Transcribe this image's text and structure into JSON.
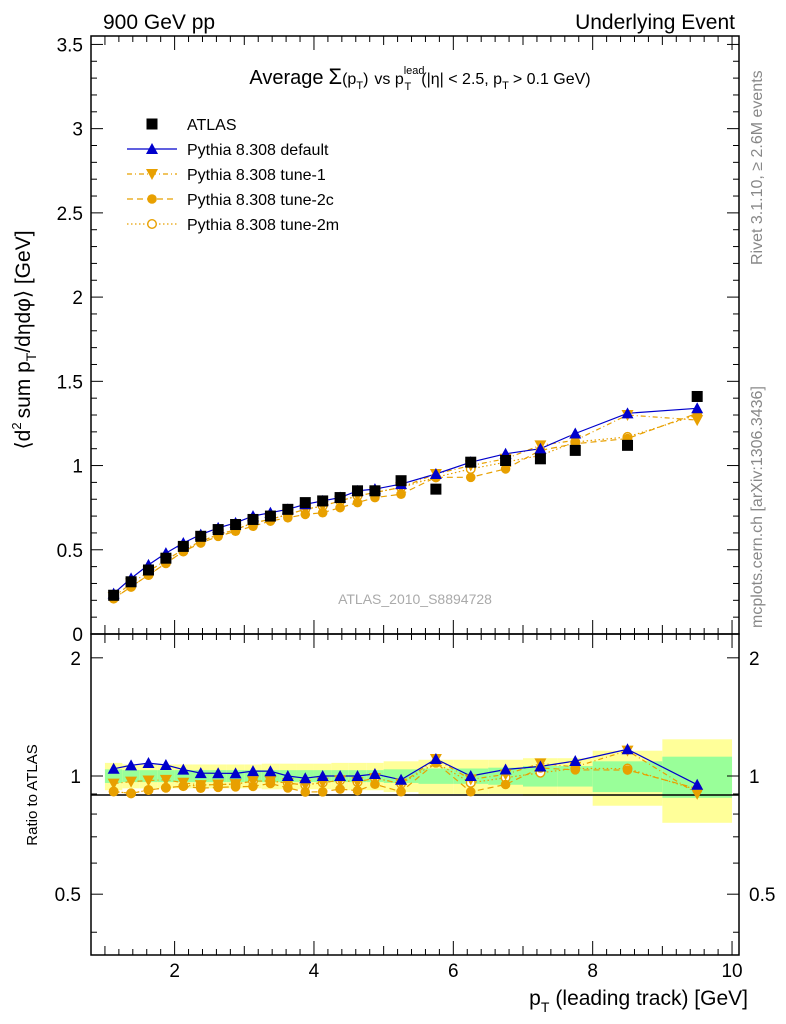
{
  "header": {
    "left": "900 GeV pp",
    "right": "Underlying Event"
  },
  "title": {
    "prefix": "Average",
    "sigma": "Σ",
    "pt_open": "(p",
    "pt_sub": "T",
    "pt_close": ")",
    "vs": "vs p",
    "lead_sup": "lead",
    "lead_sub": "T",
    "cuts": "(|η| < 2.5, p",
    "cuts_sub": "T",
    "cuts_tail": "> 0.1 GeV)"
  },
  "y_axis_label": {
    "part1": "⟨d",
    "sup2": "2",
    "part2": "sum p",
    "subT": "T",
    "part3": "/dηdφ⟩ [GeV]"
  },
  "x_axis_label": {
    "part1": "p",
    "subT": "T",
    "part2": "(leading track) [GeV]"
  },
  "ratio_label": "Ratio to ATLAS",
  "analysis_id": "ATLAS_2010_S8894728",
  "side_text_top": "Rivet 3.1.10, ≥ 2.6M events",
  "side_text_bottom": "mcplots.cern.ch [arXiv:1306.3436]",
  "colors": {
    "atlas": "#000000",
    "default": "#0000cc",
    "tune": "#e8a000",
    "band_inner": "#99ff99",
    "band_outer": "#ffff99"
  },
  "chart_data": {
    "type": "line",
    "x_tick_labels": [
      "2",
      "4",
      "6",
      "8",
      "10"
    ],
    "y_tick_labels": [
      "0",
      "0.5",
      "1",
      "1.5",
      "2",
      "2.5",
      "3",
      "3.5"
    ],
    "ratio_tick_labels": [
      "0.5",
      "1",
      "2"
    ],
    "xlim": [
      0.8,
      10.1
    ],
    "ylim": [
      0,
      3.55
    ],
    "ratio_ylim": [
      0.35,
      2.3
    ],
    "x": [
      1.125,
      1.375,
      1.625,
      1.875,
      2.125,
      2.375,
      2.625,
      2.875,
      3.125,
      3.375,
      3.625,
      3.875,
      4.125,
      4.375,
      4.625,
      4.875,
      5.25,
      5.75,
      6.25,
      6.75,
      7.25,
      7.75,
      8.5,
      9.5
    ],
    "bin_edges": [
      1.0,
      1.25,
      1.5,
      1.75,
      2.0,
      2.25,
      2.5,
      2.75,
      3.0,
      3.25,
      3.5,
      3.75,
      4.0,
      4.25,
      4.5,
      4.75,
      5.0,
      5.5,
      6.0,
      6.5,
      7.0,
      7.5,
      8.0,
      9.0,
      10.0
    ],
    "band_inner_halfwidth": [
      0.04,
      0.035,
      0.035,
      0.035,
      0.035,
      0.035,
      0.035,
      0.035,
      0.035,
      0.035,
      0.035,
      0.035,
      0.035,
      0.035,
      0.035,
      0.035,
      0.04,
      0.045,
      0.045,
      0.05,
      0.06,
      0.06,
      0.09,
      0.12,
      0.12
    ],
    "band_outer_halfwidth": [
      0.08,
      0.07,
      0.07,
      0.07,
      0.07,
      0.07,
      0.07,
      0.07,
      0.07,
      0.075,
      0.075,
      0.075,
      0.075,
      0.08,
      0.08,
      0.08,
      0.09,
      0.1,
      0.1,
      0.1,
      0.11,
      0.11,
      0.16,
      0.24,
      0.24
    ],
    "series": [
      {
        "name": "ATLAS",
        "marker": "square",
        "values": [
          0.23,
          0.31,
          0.38,
          0.45,
          0.52,
          0.58,
          0.62,
          0.65,
          0.68,
          0.7,
          0.74,
          0.78,
          0.79,
          0.81,
          0.85,
          0.85,
          0.91,
          0.86,
          1.02,
          1.03,
          1.04,
          1.09,
          1.12,
          1.41
        ]
      },
      {
        "name": "Pythia 8.308 default",
        "marker": "triangle-up",
        "values": [
          0.24,
          0.33,
          0.41,
          0.48,
          0.54,
          0.59,
          0.63,
          0.66,
          0.7,
          0.72,
          0.74,
          0.77,
          0.79,
          0.81,
          0.85,
          0.86,
          0.89,
          0.95,
          1.02,
          1.07,
          1.1,
          1.19,
          1.31,
          1.34
        ]
      },
      {
        "name": "Pythia 8.308 tune-1",
        "marker": "triangle-down",
        "values": [
          0.22,
          0.3,
          0.37,
          0.44,
          0.5,
          0.55,
          0.59,
          0.62,
          0.66,
          0.68,
          0.71,
          0.74,
          0.76,
          0.79,
          0.82,
          0.84,
          0.87,
          0.95,
          1.0,
          1.04,
          1.12,
          1.15,
          1.3,
          1.27
        ]
      },
      {
        "name": "Pythia 8.308 tune-2c",
        "marker": "circle-filled",
        "values": [
          0.21,
          0.28,
          0.35,
          0.42,
          0.49,
          0.54,
          0.58,
          0.61,
          0.64,
          0.67,
          0.69,
          0.71,
          0.72,
          0.75,
          0.78,
          0.81,
          0.83,
          0.93,
          0.93,
          0.98,
          1.09,
          1.13,
          1.16,
          1.31
        ]
      },
      {
        "name": "Pythia 8.308 tune-2m",
        "marker": "circle-open",
        "values": [
          0.21,
          0.28,
          0.35,
          0.42,
          0.49,
          0.55,
          0.59,
          0.62,
          0.66,
          0.68,
          0.71,
          0.74,
          0.76,
          0.79,
          0.82,
          0.84,
          0.87,
          0.93,
          0.98,
          1.02,
          1.06,
          1.14,
          1.17,
          1.3
        ]
      }
    ]
  }
}
